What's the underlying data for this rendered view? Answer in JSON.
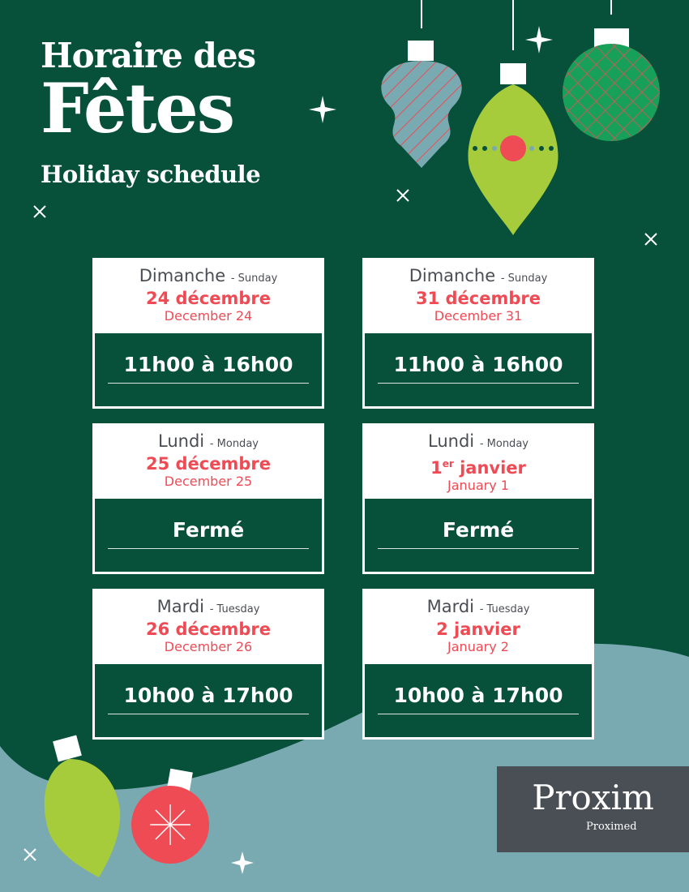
{
  "title": {
    "line1": "Horaire des",
    "line2": "Fêtes",
    "line3": "Holiday schedule"
  },
  "colors": {
    "background": "#07503a",
    "accent": "#ee4b55",
    "wave": "#79aab1",
    "lime": "#a6cc3c"
  },
  "schedule": [
    {
      "day_fr": "Dimanche",
      "day_en": "- Sunday",
      "date_fr": "24 décembre",
      "date_en": "December 24",
      "hours": "11h00 à 16h00"
    },
    {
      "day_fr": "Dimanche",
      "day_en": "- Sunday",
      "date_fr": "31 décembre",
      "date_en": "December 31",
      "hours": "11h00 à 16h00"
    },
    {
      "day_fr": "Lundi",
      "day_en": "- Monday",
      "date_fr": "25 décembre",
      "date_en": "December 25",
      "hours": "Fermé"
    },
    {
      "day_fr": "Lundi",
      "day_en": "- Monday",
      "date_num": "1",
      "date_sup": "er",
      "date_fr": " janvier",
      "date_en": "January 1",
      "hours": "Fermé"
    },
    {
      "day_fr": "Mardi",
      "day_en": "- Tuesday",
      "date_fr": "26 décembre",
      "date_en": "December 26",
      "hours": "10h00 à 17h00"
    },
    {
      "day_fr": "Mardi",
      "day_en": "- Tuesday",
      "date_fr": "2 janvier",
      "date_en": "January 2",
      "hours": "10h00 à 17h00"
    }
  ],
  "logo": {
    "brand": "Proxim",
    "sub": "Proximed"
  }
}
